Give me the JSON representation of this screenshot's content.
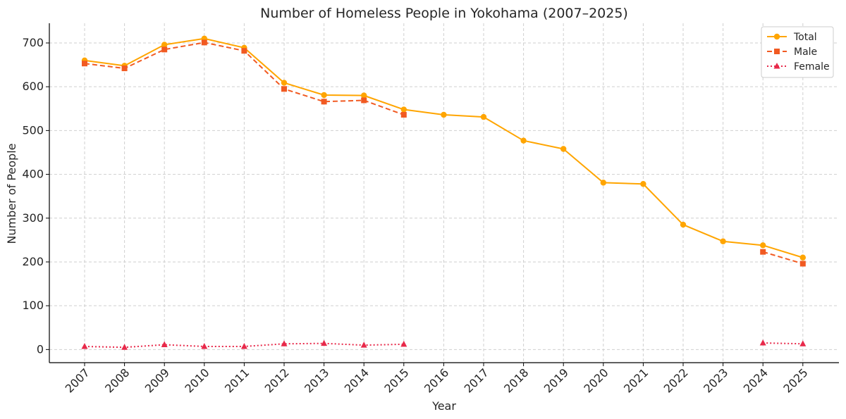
{
  "chart_data": {
    "type": "line",
    "title": "Number of Homeless People in Yokohama (2007–2025)",
    "xlabel": "Year",
    "ylabel": "Number of People",
    "ylim": [
      -30,
      745
    ],
    "y_ticks": [
      0,
      100,
      200,
      300,
      400,
      500,
      600,
      700
    ],
    "grid": true,
    "legend_position": "top-right",
    "categories": [
      "2007",
      "2008",
      "2009",
      "2010",
      "2011",
      "2012",
      "2013",
      "2014",
      "2015",
      "2016",
      "2017",
      "2018",
      "2019",
      "2020",
      "2021",
      "2022",
      "2023",
      "2024",
      "2025"
    ],
    "series": [
      {
        "name": "Total",
        "color": "#FFA500",
        "line_style": "solid",
        "marker": "circle",
        "values": [
          660,
          648,
          696,
          710,
          689,
          609,
          581,
          580,
          548,
          536,
          531,
          477,
          458,
          381,
          378,
          285,
          247,
          238,
          210
        ]
      },
      {
        "name": "Male",
        "color": "#F15A22",
        "line_style": "dashed",
        "marker": "square",
        "values": [
          653,
          642,
          685,
          701,
          682,
          595,
          566,
          569,
          536,
          null,
          null,
          null,
          null,
          null,
          null,
          null,
          null,
          223,
          196
        ]
      },
      {
        "name": "Female",
        "color": "#E8294A",
        "line_style": "dotted",
        "marker": "triangle",
        "values": [
          7,
          5,
          11,
          7,
          7,
          13,
          14,
          10,
          12,
          null,
          null,
          null,
          null,
          null,
          null,
          null,
          null,
          15,
          13
        ]
      }
    ]
  }
}
